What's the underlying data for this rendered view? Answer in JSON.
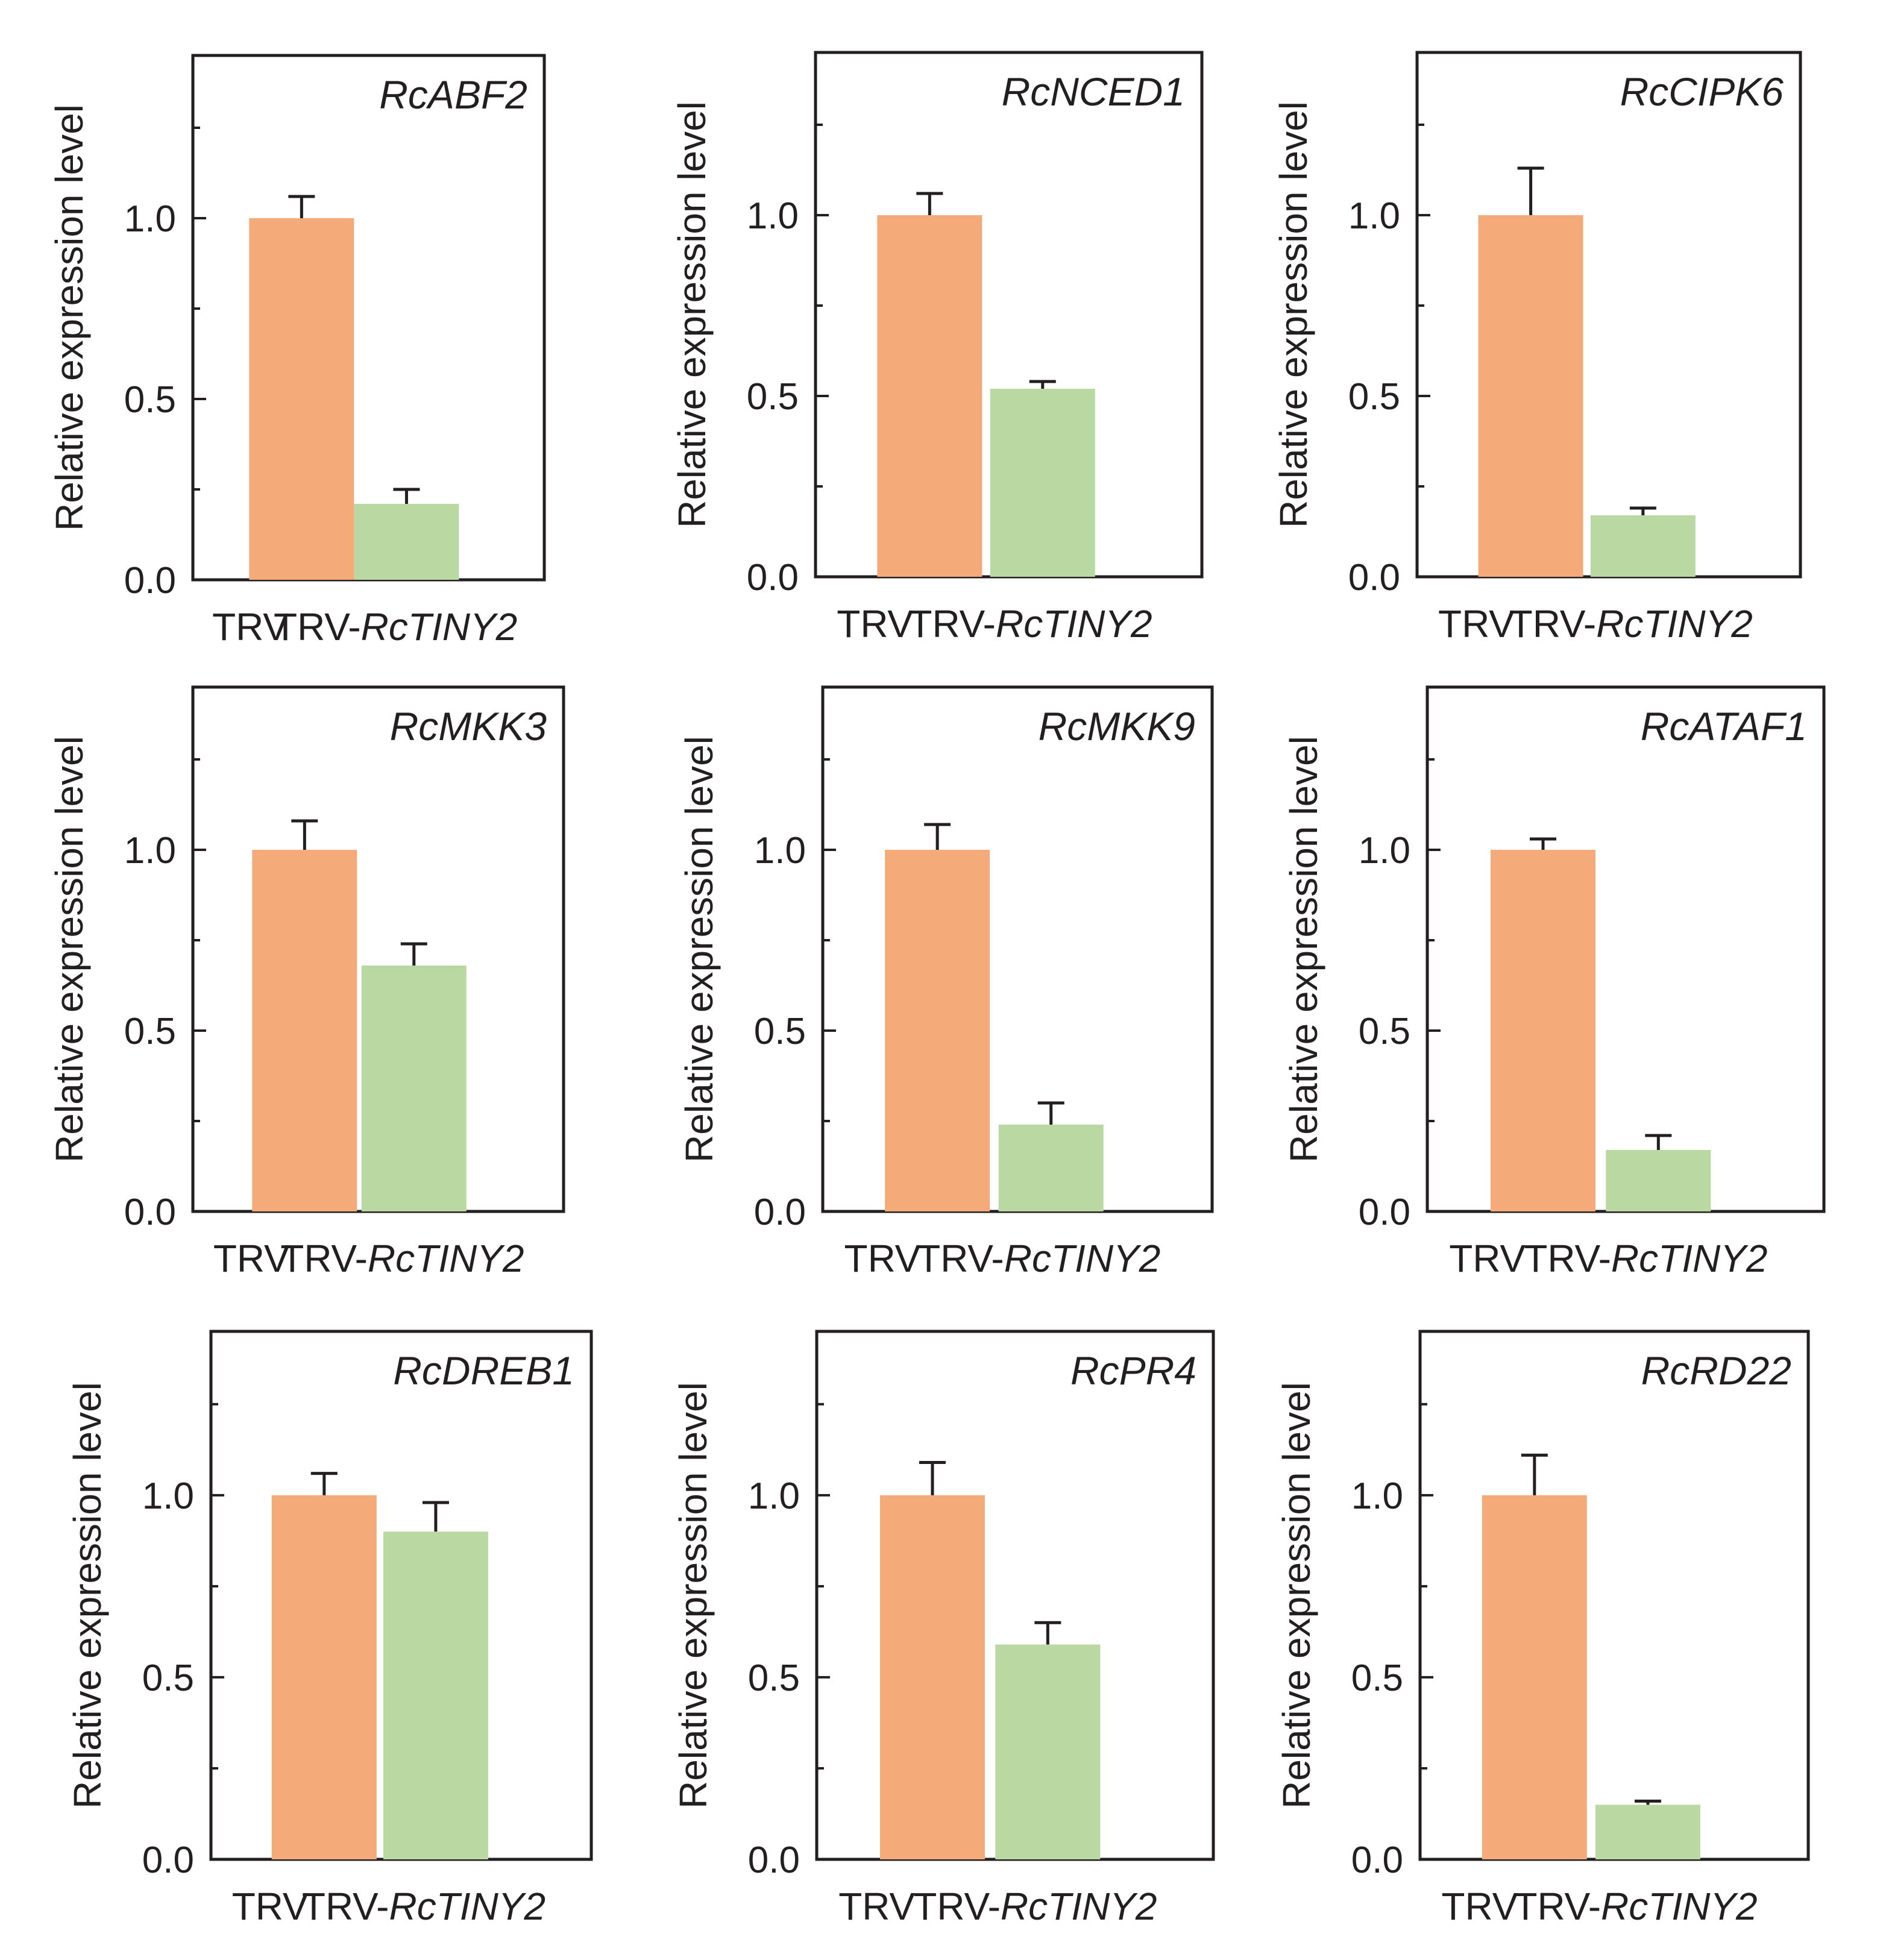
{
  "figure": {
    "ylabel": "Relative expression level",
    "ytick_labels": [
      "0.0",
      "0.5",
      "1.0"
    ],
    "category_labels": [
      {
        "plain": "TRV",
        "italic": ""
      },
      {
        "plain": "TRV-",
        "italic": "RcTINY2"
      }
    ],
    "colors": {
      "TRV": "#f4ab79",
      "TRV-RcTINY2": "#bad9a2",
      "axis": "#231f20"
    }
  },
  "chart_data": [
    {
      "type": "bar",
      "title": "RcABF2",
      "categories": [
        "TRV",
        "TRV-RcTINY2"
      ],
      "values": [
        1.0,
        0.21
      ],
      "errors": [
        0.06,
        0.04
      ],
      "ylabel": "Relative expression level",
      "ylim": [
        0,
        1.45
      ],
      "yticks": [
        0.0,
        0.5,
        1.0
      ]
    },
    {
      "type": "bar",
      "title": "RcNCED1",
      "categories": [
        "TRV",
        "TRV-RcTINY2"
      ],
      "values": [
        1.0,
        0.52
      ],
      "errors": [
        0.06,
        0.02
      ],
      "ylabel": "Relative expression level",
      "ylim": [
        0,
        1.45
      ],
      "yticks": [
        0.0,
        0.5,
        1.0
      ]
    },
    {
      "type": "bar",
      "title": "RcCIPK6",
      "categories": [
        "TRV",
        "TRV-RcTINY2"
      ],
      "values": [
        1.0,
        0.17
      ],
      "errors": [
        0.13,
        0.02
      ],
      "ylabel": "Relative expression level",
      "ylim": [
        0,
        1.45
      ],
      "yticks": [
        0.0,
        0.5,
        1.0
      ]
    },
    {
      "type": "bar",
      "title": "RcMKK3",
      "categories": [
        "TRV",
        "TRV-RcTINY2"
      ],
      "values": [
        1.0,
        0.68
      ],
      "errors": [
        0.08,
        0.06
      ],
      "ylabel": "Relative expression level",
      "ylim": [
        0,
        1.45
      ],
      "yticks": [
        0.0,
        0.5,
        1.0
      ]
    },
    {
      "type": "bar",
      "title": "RcMKK9",
      "categories": [
        "TRV",
        "TRV-RcTINY2"
      ],
      "values": [
        1.0,
        0.24
      ],
      "errors": [
        0.07,
        0.06
      ],
      "ylabel": "Relative expression level",
      "ylim": [
        0,
        1.45
      ],
      "yticks": [
        0.0,
        0.5,
        1.0
      ]
    },
    {
      "type": "bar",
      "title": "RcATAF1",
      "categories": [
        "TRV",
        "TRV-RcTINY2"
      ],
      "values": [
        1.0,
        0.17
      ],
      "errors": [
        0.03,
        0.04
      ],
      "ylabel": "Relative expression level",
      "ylim": [
        0,
        1.45
      ],
      "yticks": [
        0.0,
        0.5,
        1.0
      ]
    },
    {
      "type": "bar",
      "title": "RcDREB1",
      "categories": [
        "TRV",
        "TRV-RcTINY2"
      ],
      "values": [
        1.0,
        0.9
      ],
      "errors": [
        0.06,
        0.08
      ],
      "ylabel": "Relative expression level",
      "ylim": [
        0,
        1.45
      ],
      "yticks": [
        0.0,
        0.5,
        1.0
      ]
    },
    {
      "type": "bar",
      "title": "RcPR4",
      "categories": [
        "TRV",
        "TRV-RcTINY2"
      ],
      "values": [
        1.0,
        0.59
      ],
      "errors": [
        0.09,
        0.06
      ],
      "ylabel": "Relative expression level",
      "ylim": [
        0,
        1.45
      ],
      "yticks": [
        0.0,
        0.5,
        1.0
      ]
    },
    {
      "type": "bar",
      "title": "RcRD22",
      "categories": [
        "TRV",
        "TRV-RcTINY2"
      ],
      "values": [
        1.0,
        0.15
      ],
      "errors": [
        0.11,
        0.01
      ],
      "ylabel": "Relative expression level",
      "ylim": [
        0,
        1.45
      ],
      "yticks": [
        0.0,
        0.5,
        1.0
      ]
    }
  ]
}
